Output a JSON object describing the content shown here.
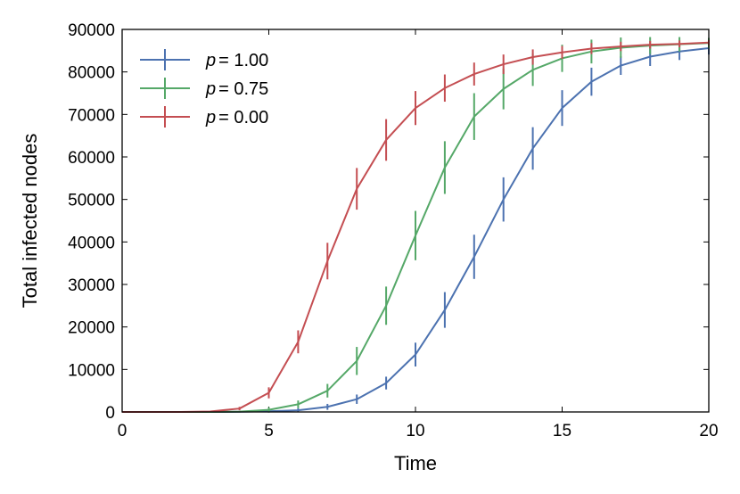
{
  "chart_data": {
    "type": "line",
    "title": "",
    "xlabel": "Time",
    "ylabel": "Total infected nodes",
    "xlim": [
      0,
      20
    ],
    "ylim": [
      0,
      90000
    ],
    "xticks": [
      0,
      5,
      10,
      15,
      20
    ],
    "xtick_labels": [
      "0",
      "5",
      "10",
      "15",
      "20"
    ],
    "yticks": [
      0,
      10000,
      20000,
      30000,
      40000,
      50000,
      60000,
      70000,
      80000,
      90000
    ],
    "ytick_labels": [
      "0",
      "10000",
      "20000",
      "30000",
      "40000",
      "50000",
      "60000",
      "70000",
      "80000",
      "90000"
    ],
    "grid": false,
    "legend_position": "top-left",
    "series": [
      {
        "name": "p = 1.00",
        "legend_var": "p",
        "legend_value": "= 1.00",
        "color": "#4c72b0",
        "x": [
          0,
          1,
          2,
          3,
          4,
          5,
          6,
          7,
          8,
          9,
          10,
          11,
          12,
          13,
          14,
          15,
          16,
          17,
          18,
          19,
          20
        ],
        "y": [
          0,
          0,
          0,
          0,
          50,
          150,
          400,
          1200,
          3000,
          6800,
          13500,
          24000,
          36500,
          50000,
          62000,
          71500,
          77700,
          81500,
          83600,
          84800,
          85600
        ],
        "err": [
          0,
          0,
          0,
          0,
          0,
          300,
          500,
          700,
          1100,
          1500,
          2800,
          4200,
          5200,
          5200,
          5000,
          4200,
          3300,
          2200,
          2200,
          2000,
          1500
        ]
      },
      {
        "name": "p = 0.75",
        "legend_var": "p",
        "legend_value": "= 0.75",
        "color": "#55a868",
        "x": [
          0,
          1,
          2,
          3,
          4,
          5,
          6,
          7,
          8,
          9,
          10,
          11,
          12,
          13,
          14,
          15,
          16,
          17,
          18,
          19,
          20
        ],
        "y": [
          0,
          0,
          0,
          0,
          80,
          500,
          1800,
          5000,
          12000,
          25000,
          41500,
          57500,
          69500,
          76000,
          80500,
          83200,
          84800,
          85700,
          86200,
          86500,
          86800
        ],
        "err": [
          0,
          0,
          0,
          0,
          0,
          600,
          900,
          1600,
          3300,
          4500,
          5800,
          6200,
          5500,
          4800,
          3800,
          3200,
          2800,
          2400,
          2000,
          1700,
          1200
        ]
      },
      {
        "name": "p = 0.00",
        "legend_var": "p",
        "legend_value": "= 0.00",
        "color": "#c44e52",
        "x": [
          0,
          1,
          2,
          3,
          4,
          5,
          6,
          7,
          8,
          9,
          10,
          11,
          12,
          13,
          14,
          15,
          16,
          17,
          18,
          19,
          20
        ],
        "y": [
          0,
          0,
          0,
          100,
          800,
          4500,
          16500,
          35500,
          52500,
          64000,
          71500,
          76200,
          79500,
          81800,
          83500,
          84600,
          85500,
          86000,
          86400,
          86600,
          86900
        ],
        "err": [
          0,
          0,
          0,
          0,
          400,
          1300,
          2700,
          4300,
          4900,
          4900,
          4000,
          3200,
          2700,
          2300,
          1800,
          1500,
          1300,
          1100,
          900,
          800,
          600
        ]
      }
    ]
  }
}
